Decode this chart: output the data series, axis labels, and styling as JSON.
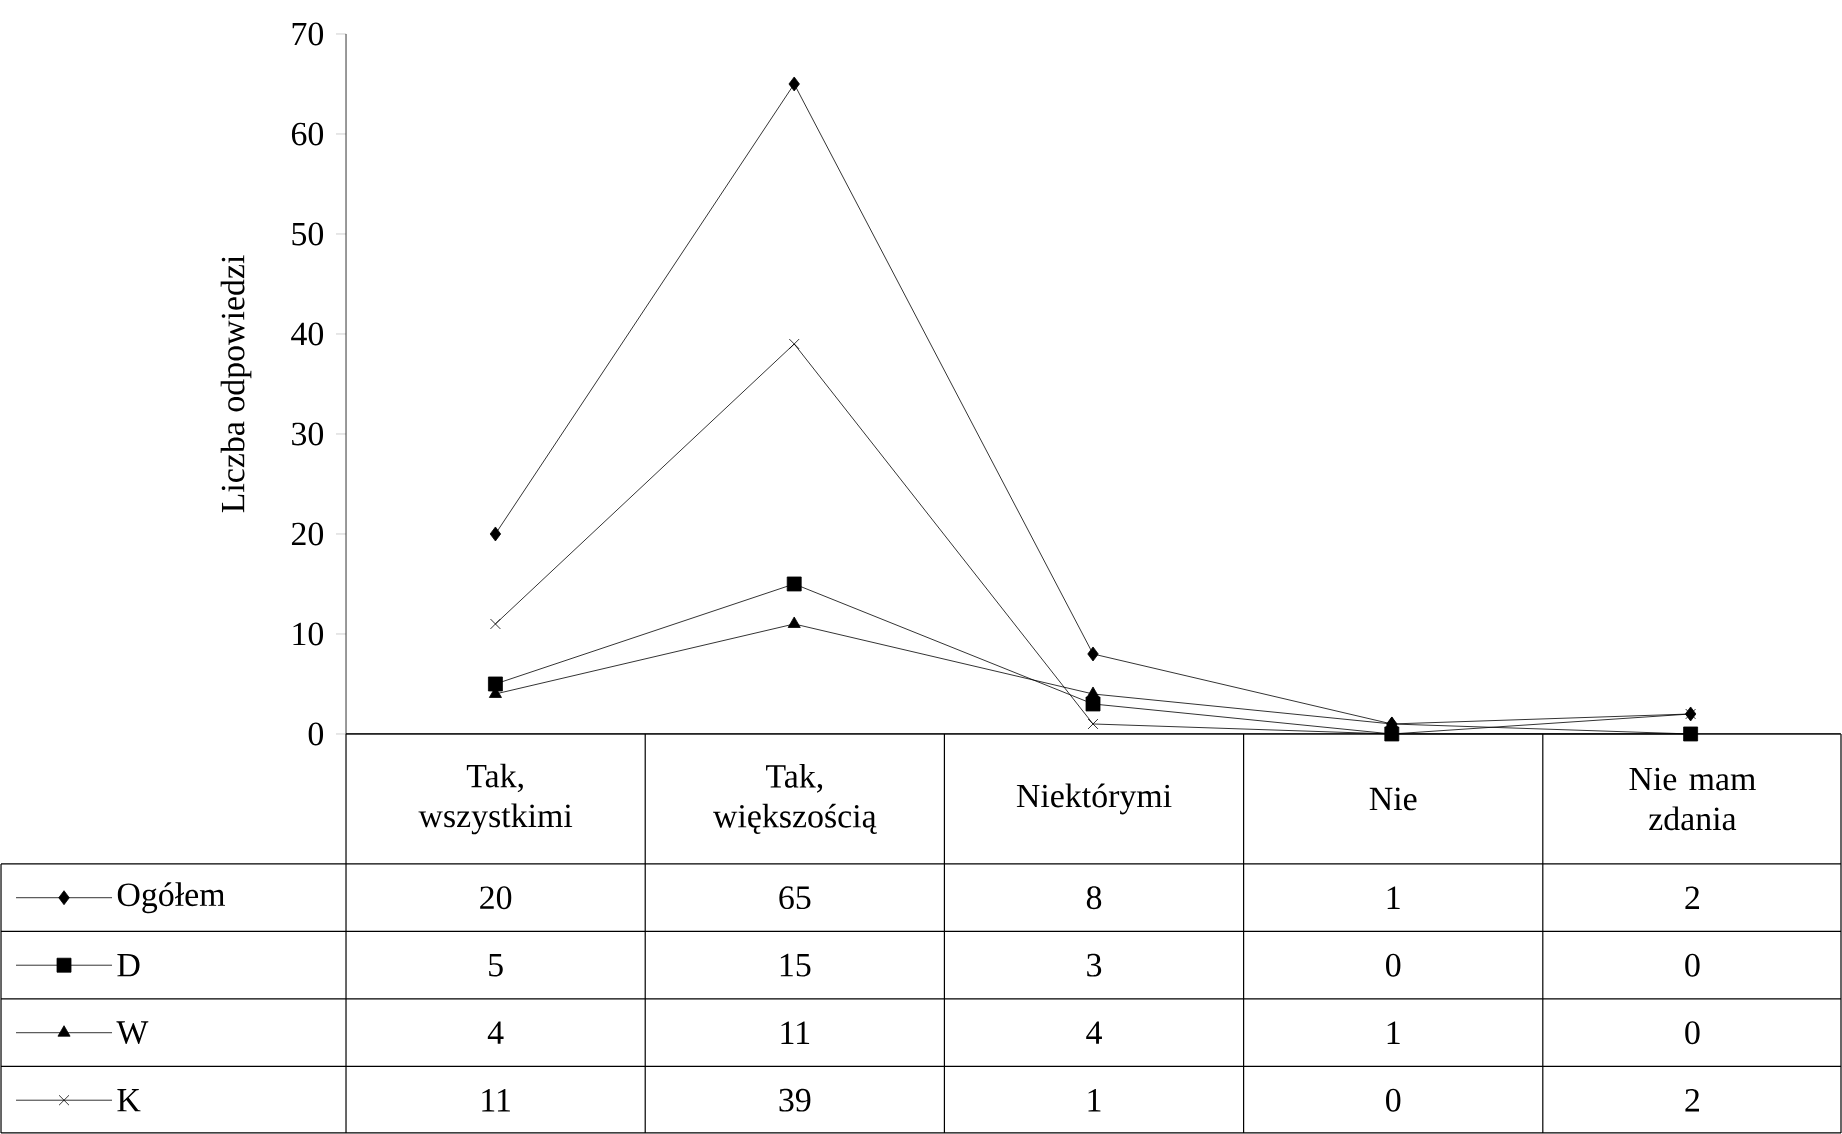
{
  "chart_data": {
    "type": "line",
    "ylabel": "Liczba odpowiedzi",
    "categories": [
      "Tak, wszystkimi",
      "Tak, większością",
      "Niektórymi",
      "Nie",
      "Nie mam zdania"
    ],
    "series": [
      {
        "name": "Ogółem",
        "color": "#000000",
        "marker": "diamond",
        "values": [
          20,
          65,
          8,
          1,
          2
        ]
      },
      {
        "name": "D",
        "color": "#000000",
        "marker": "square",
        "values": [
          5,
          15,
          3,
          0,
          0
        ]
      },
      {
        "name": "W",
        "color": "#000000",
        "marker": "triangle",
        "values": [
          4,
          11,
          4,
          1,
          0
        ]
      },
      {
        "name": "K",
        "color": "#000000",
        "marker": "cross",
        "values": [
          11,
          39,
          1,
          0,
          2
        ]
      }
    ],
    "ylim": [
      0,
      70
    ],
    "yticks": [
      0,
      10,
      20,
      30,
      40,
      50,
      60,
      70
    ],
    "grid": false,
    "legend": "bottom",
    "data_labels": true,
    "line_style": "solid"
  }
}
